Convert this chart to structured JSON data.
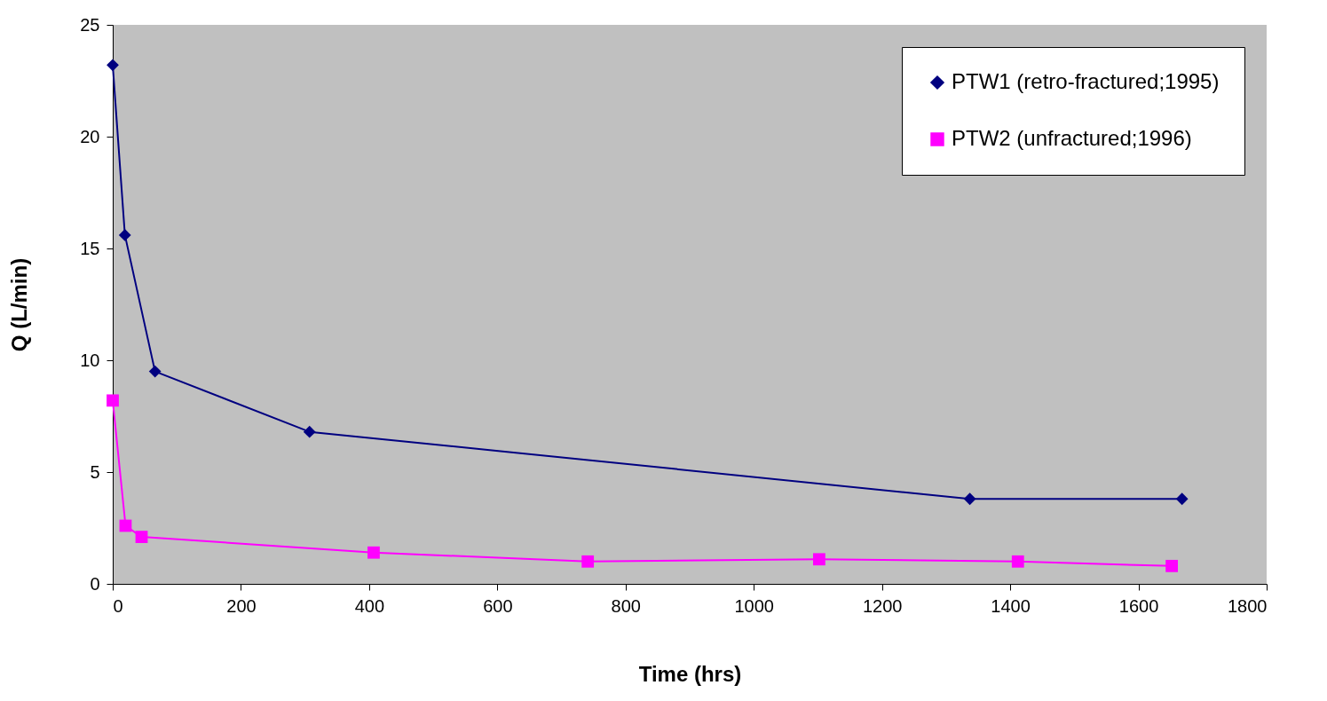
{
  "chart_data": {
    "type": "line",
    "xlabel": "Time (hrs)",
    "ylabel": "Q (L/min)",
    "xlim": [
      0,
      1800
    ],
    "ylim": [
      0,
      25
    ],
    "xticks": [
      0,
      200,
      400,
      600,
      800,
      1000,
      1200,
      1400,
      1600,
      1800
    ],
    "yticks": [
      0,
      5,
      10,
      15,
      20,
      25
    ],
    "grid": false,
    "legend": "top right",
    "series": [
      {
        "name": "PTW1 (retro-fractured;1995)",
        "color": "#000080",
        "marker": "diamond",
        "x": [
          0,
          19,
          66,
          307,
          1337,
          1668
        ],
        "values": [
          23.2,
          15.6,
          9.5,
          6.8,
          3.8,
          3.8
        ]
      },
      {
        "name": "PTW2 (unfractured;1996)",
        "color": "#ff00ff",
        "marker": "square",
        "x": [
          0,
          20,
          45,
          407,
          741,
          1102,
          1412,
          1652
        ],
        "values": [
          8.2,
          2.6,
          2.1,
          1.4,
          1.0,
          1.1,
          1.0,
          0.8
        ]
      }
    ]
  }
}
